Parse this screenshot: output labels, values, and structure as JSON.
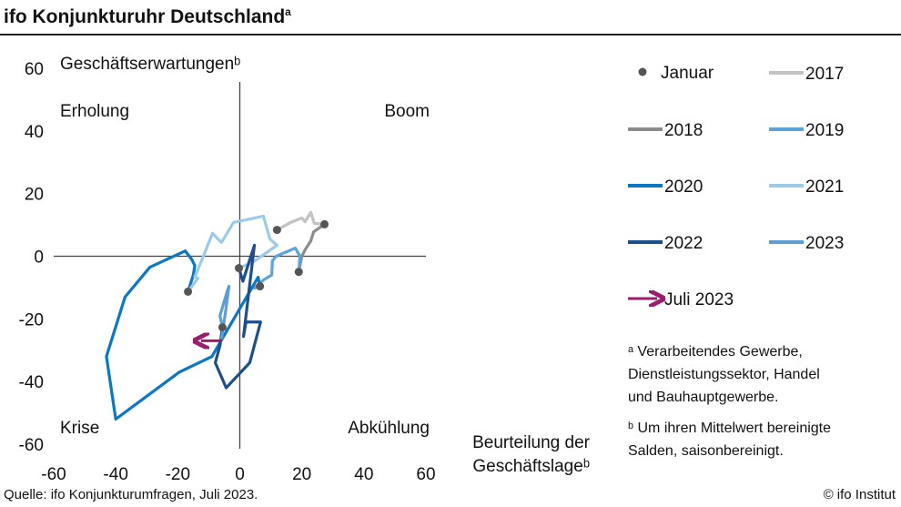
{
  "title": "ifo Konjunkturuhr Deutschland",
  "title_sup": "a",
  "source": "Quelle: ifo Konjunkturumfragen, Juli 2023.",
  "copyright": "© ifo Institut",
  "footnotes": [
    "ᵃ Verarbeitendes  Gewerbe,",
    "Dienstleistungssektor,  Handel",
    "und Bauhauptgewerbe.",
    "ᵇ Um ihren Mittelwert  bereinigte",
    "Salden, saisonbereinigt."
  ],
  "chart_data": {
    "type": "line",
    "ylabel": "Geschäftserwartungenᵇ",
    "xlabel": [
      "Beurteilung der",
      "Geschäftslageᵇ"
    ],
    "xlim": [
      -60,
      60
    ],
    "ylim": [
      -60,
      60
    ],
    "xticks": [
      -60,
      -40,
      -20,
      0,
      20,
      40,
      60
    ],
    "yticks": [
      60,
      40,
      20,
      0,
      -20,
      -40,
      -60
    ],
    "quadrants": {
      "top_left": "Erholung",
      "top_right": "Boom",
      "bottom_left": "Krise",
      "bottom_right": "Abkühlung"
    },
    "january_marker": {
      "name": "Januar",
      "color": "#555555"
    },
    "series": [
      {
        "name": "2017",
        "color": "#c3c3c3",
        "points": [
          [
            12,
            8.4
          ],
          [
            16.4,
            10.8
          ],
          [
            20,
            12.2
          ],
          [
            21,
            11
          ],
          [
            22.9,
            14
          ],
          [
            24,
            10.5
          ],
          [
            27.3,
            10.2
          ]
        ]
      },
      {
        "name": "2018",
        "color": "#8c8c8c",
        "points": [
          [
            27.3,
            10.2
          ],
          [
            23.8,
            7.8
          ],
          [
            22.9,
            4.9
          ],
          [
            21,
            2
          ],
          [
            20,
            0
          ],
          [
            19,
            -5
          ]
        ]
      },
      {
        "name": "2019",
        "color": "#5ba3d9",
        "points": [
          [
            19,
            -5
          ],
          [
            19.4,
            0
          ],
          [
            17.9,
            2.6
          ],
          [
            11.7,
            0
          ],
          [
            10.5,
            -1.5
          ],
          [
            10.3,
            -6
          ],
          [
            7.6,
            -7.6
          ],
          [
            4.7,
            -10.2
          ],
          [
            6.5,
            -9.6
          ]
        ]
      },
      {
        "name": "2020",
        "color": "#0a78c2",
        "points": [
          [
            6.5,
            -9.6
          ],
          [
            5.9,
            -6.7
          ],
          [
            -9,
            -32
          ],
          [
            -19.5,
            -37
          ],
          [
            -40,
            -52
          ],
          [
            -43,
            -32
          ],
          [
            -37,
            -13
          ],
          [
            -29,
            -3.5
          ],
          [
            -17.6,
            1.7
          ],
          [
            -15.5,
            -1
          ],
          [
            -14.5,
            -3
          ],
          [
            -15,
            -6
          ],
          [
            -16.7,
            -11.3
          ]
        ]
      },
      {
        "name": "2021",
        "color": "#9ccbea",
        "points": [
          [
            -16.7,
            -11.3
          ],
          [
            -13.5,
            -7
          ],
          [
            -14.5,
            -6.5
          ],
          [
            -13,
            -3
          ],
          [
            -8.8,
            7.3
          ],
          [
            -5.9,
            4.4
          ],
          [
            -2,
            10.8
          ],
          [
            7.6,
            12.8
          ],
          [
            9.7,
            5.5
          ],
          [
            12,
            3.5
          ],
          [
            4,
            -2
          ],
          [
            -0.3,
            -3.8
          ]
        ]
      },
      {
        "name": "2022",
        "color": "#1f4e8c",
        "points": [
          [
            -0.3,
            -3.8
          ],
          [
            1,
            -8
          ],
          [
            4.7,
            3.5
          ],
          [
            1.2,
            -25.6
          ],
          [
            2,
            -21
          ],
          [
            6.7,
            -21
          ],
          [
            3.2,
            -34
          ],
          [
            -4.4,
            -42
          ],
          [
            -7.9,
            -34
          ],
          [
            -6.4,
            -28.5
          ],
          [
            -5.6,
            -22.7
          ]
        ]
      },
      {
        "name": "2023",
        "color": "#5e9fd3",
        "points": [
          [
            -5.6,
            -22.7
          ],
          [
            -6.4,
            -19
          ],
          [
            -4,
            -11
          ],
          [
            -3.5,
            -9.6
          ],
          [
            -4.5,
            -17
          ],
          [
            -5.9,
            -26.5
          ]
        ]
      }
    ],
    "january_points": [
      [
        12,
        8.4
      ],
      [
        27.3,
        10.2
      ],
      [
        19,
        -5
      ],
      [
        6.5,
        -9.6
      ],
      [
        -16.7,
        -11.3
      ],
      [
        -0.3,
        -3.8
      ],
      [
        -5.6,
        -22.7
      ]
    ],
    "current": {
      "name": "Juli 2023",
      "color": "#9c1d6e",
      "from": [
        -5.9,
        -27
      ],
      "to": [
        -12.5,
        -27
      ]
    }
  }
}
